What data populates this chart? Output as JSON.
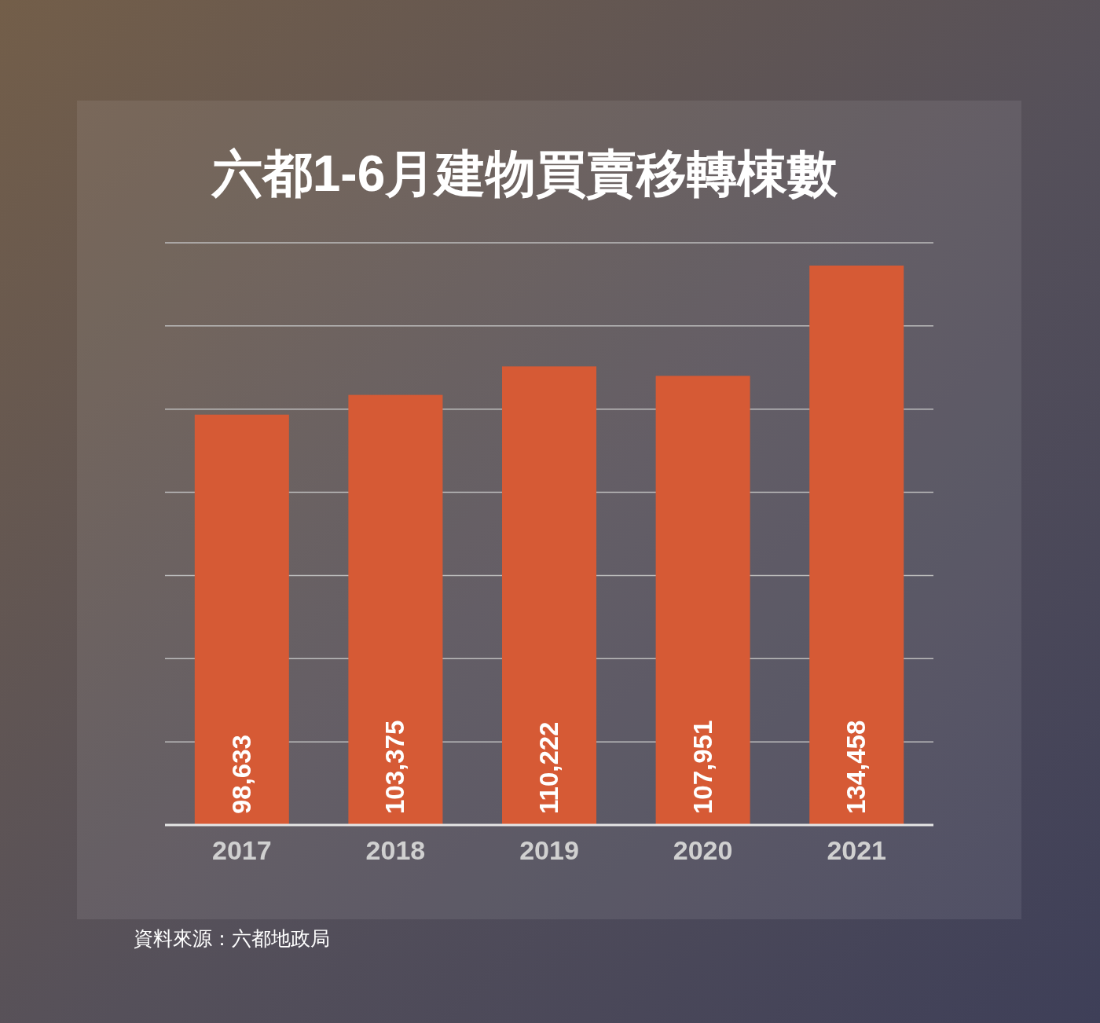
{
  "chart_data": {
    "type": "bar",
    "title": "六都1-6月建物買賣移轉棟數",
    "categories": [
      "2017",
      "2018",
      "2019",
      "2020",
      "2021"
    ],
    "values": [
      98633,
      103375,
      110222,
      107951,
      134458
    ],
    "value_labels": [
      "98,633",
      "103,375",
      "110,222",
      "107,951",
      "134,458"
    ],
    "color": "#d65a35",
    "grid": "y",
    "tick_labels": "x",
    "annotations": [
      "資料來源：六都地政局"
    ]
  }
}
